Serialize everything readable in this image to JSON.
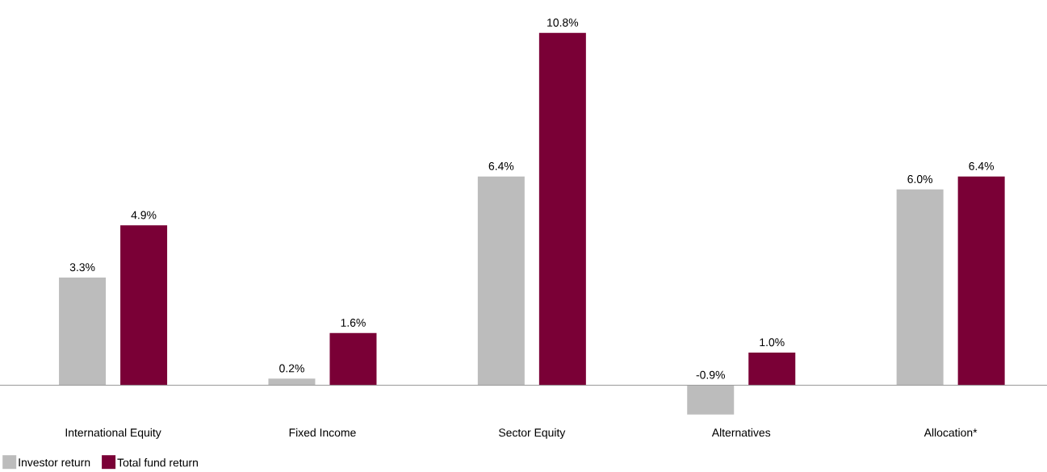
{
  "chart_data": {
    "type": "bar",
    "categories": [
      "International Equity",
      "Fixed Income",
      "Sector Equity",
      "Alternatives",
      "Allocation*"
    ],
    "series": [
      {
        "name": "Investor return",
        "color": "#bcbcbc",
        "values": [
          3.3,
          0.2,
          6.4,
          -0.9,
          6.0
        ],
        "value_labels": [
          "3.3%",
          "0.2%",
          "6.4%",
          "-0.9%",
          "6.0%"
        ]
      },
      {
        "name": "Total fund return",
        "color": "#7a0036",
        "values": [
          4.9,
          1.6,
          10.8,
          1.0,
          6.4
        ],
        "value_labels": [
          "4.9%",
          "1.6%",
          "10.8%",
          "1.0%",
          "6.4%"
        ]
      }
    ],
    "legend": "bottom left"
  }
}
